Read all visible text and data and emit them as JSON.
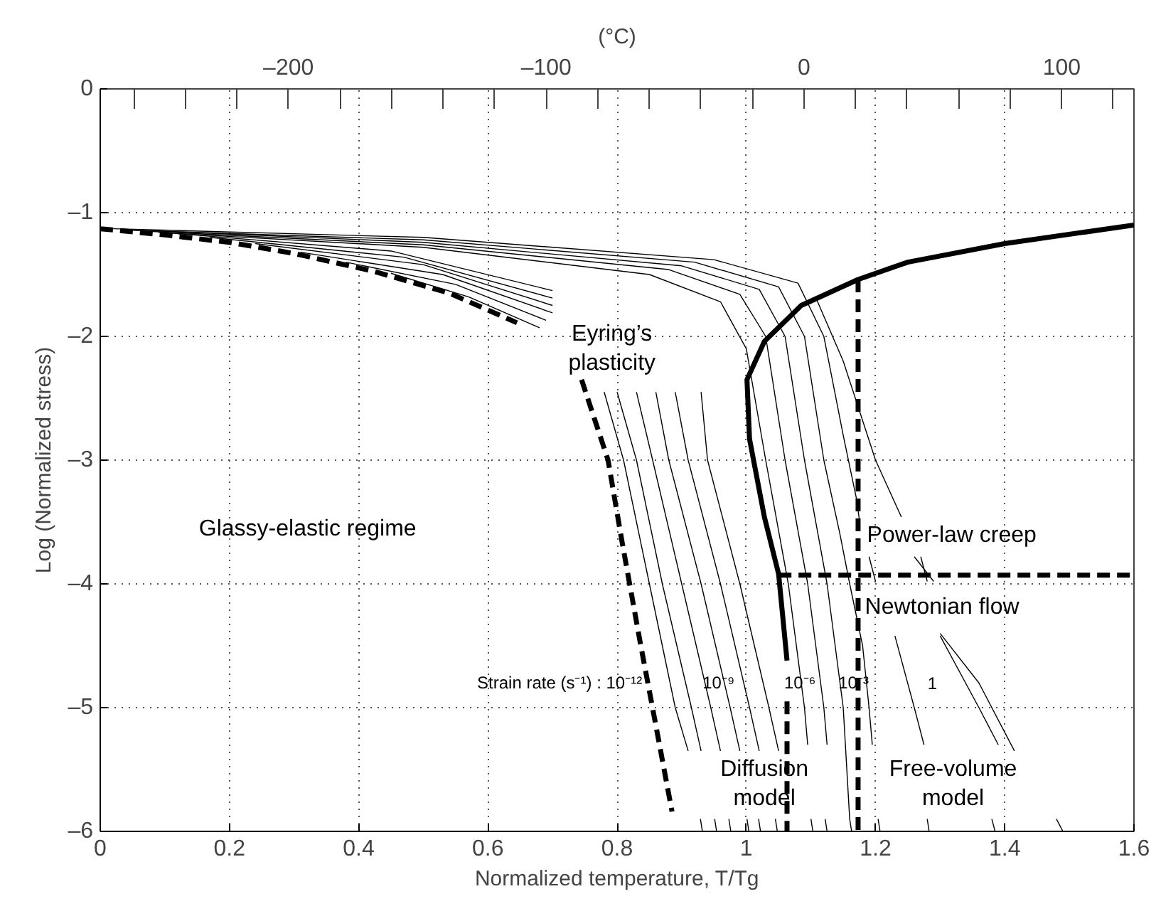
{
  "chart_data": {
    "type": "line",
    "xlabel": "Normalized temperature, T/Tg",
    "ylabel": "Log (Normalized stress)",
    "xlim": [
      0,
      1.6
    ],
    "xticks": [
      0,
      0.2,
      0.4,
      0.6,
      0.8,
      1,
      1.2,
      1.4,
      1.6
    ],
    "ylim": [
      -6,
      0
    ],
    "yticks": [
      {
        "value": -6,
        "label": "–6"
      },
      {
        "value": -5,
        "label": "–5"
      },
      {
        "value": -4,
        "label": "–4"
      },
      {
        "value": -3,
        "label": "–3"
      },
      {
        "value": -2,
        "label": "–2"
      },
      {
        "value": -1,
        "label": "–1"
      },
      0
    ],
    "x2lim": [
      -273,
      128
    ],
    "x2label": "(°C)",
    "x2ticks": [
      {
        "value": -260,
        "label": null
      },
      {
        "value": -240,
        "label": null
      },
      {
        "value": -220,
        "label": null
      },
      {
        "value": -200,
        "label": "–200"
      },
      {
        "value": -180,
        "label": null
      },
      {
        "value": -160,
        "label": null
      },
      {
        "value": -140,
        "label": null
      },
      {
        "value": -120,
        "label": null
      },
      {
        "value": -100,
        "label": "–100"
      },
      {
        "value": -80,
        "label": null
      },
      {
        "value": -60,
        "label": null
      },
      {
        "value": -40,
        "label": null
      },
      {
        "value": -20,
        "label": null
      },
      {
        "value": 0,
        "label": "0"
      },
      {
        "value": 20,
        "label": null
      },
      {
        "value": 40,
        "label": null
      },
      {
        "value": 60,
        "label": null
      },
      {
        "value": 80,
        "label": null
      },
      {
        "value": 100,
        "label": "100"
      },
      {
        "value": 120,
        "label": null
      }
    ],
    "grid": true,
    "marker": "none",
    "series": [
      {
        "color": "#000000",
        "line_style": "solid",
        "x": [
          1.6,
          1.4,
          1.25,
          1.173,
          1.085,
          1.028,
          1.001,
          1.005,
          1.028,
          1.05,
          1.063
        ],
        "values": [
          -1.1,
          -1.25,
          -1.4,
          -1.54,
          -1.75,
          -2.04,
          -2.35,
          -2.83,
          -3.46,
          -3.92,
          -4.62
        ]
      },
      {
        "color": "#000000",
        "line_style": "dashed",
        "x": [
          0,
          0.1,
          0.2,
          0.3,
          0.42,
          0.54,
          0.645
        ],
        "values": [
          -1.13,
          -1.18,
          -1.24,
          -1.33,
          -1.47,
          -1.65,
          -1.89
        ]
      },
      {
        "color": "#000000",
        "line_style": "dashed",
        "x": [
          0.745,
          0.786,
          0.808,
          0.836,
          0.862,
          0.885
        ],
        "values": [
          -2.35,
          -3.0,
          -3.67,
          -4.48,
          -5.2,
          -5.84
        ]
      },
      {
        "color": "#000000",
        "line_style": "dashed",
        "x": [
          1.063,
          1.063
        ],
        "values": [
          -4.95,
          -6
        ]
      },
      {
        "color": "#000000",
        "line_style": "dashed",
        "x": [
          1.173,
          1.173
        ],
        "values": [
          -1.54,
          -6
        ]
      },
      {
        "color": "#000000",
        "line_style": "dashed",
        "x": [
          1.05,
          1.6
        ],
        "values": [
          -3.93,
          -3.93
        ]
      },
      {
        "color": "#000000",
        "x": [
          0.45,
          0.57,
          0.68,
          null,
          0.78,
          0.81,
          0.85,
          0.89,
          0.91,
          null,
          0.929,
          0.932
        ],
        "values": [
          -1.49,
          -1.68,
          -1.93,
          null,
          -2.45,
          -3,
          -4,
          -5,
          -5.35,
          null,
          -5.9,
          -6
        ]
      },
      {
        "color": "#000000",
        "x": [
          0.38,
          0.55,
          0.69,
          null,
          0.8,
          0.83,
          0.87,
          0.915,
          0.93,
          null,
          0.951,
          0.954
        ],
        "values": [
          -1.4,
          -1.58,
          -1.87,
          null,
          -2.45,
          -3,
          -4,
          -5,
          -5.35,
          null,
          -5.9,
          -6
        ]
      },
      {
        "color": "#000000",
        "x": [
          0.31,
          0.53,
          0.7,
          null,
          0.83,
          0.855,
          0.9,
          0.945,
          0.96,
          null,
          0.973,
          0.976
        ],
        "values": [
          -1.32,
          -1.5,
          -1.81,
          null,
          -2.45,
          -3,
          -4,
          -5,
          -5.35,
          null,
          -5.9,
          -6
        ]
      },
      {
        "color": "#000000",
        "x": [
          0.24,
          0.5,
          0.7,
          null,
          0.86,
          0.88,
          0.93,
          0.975,
          0.99,
          null,
          1.001,
          1.004
        ],
        "values": [
          -1.25,
          -1.42,
          -1.75,
          null,
          -2.45,
          -3,
          -4,
          -5,
          -5.35,
          null,
          -5.9,
          -6
        ]
      },
      {
        "color": "#000000",
        "x": [
          0.17,
          0.47,
          0.7,
          null,
          0.89,
          0.91,
          0.96,
          1.005,
          1.02,
          null,
          1.019,
          1.022
        ],
        "values": [
          -1.2,
          -1.36,
          -1.69,
          null,
          -2.45,
          -3,
          -4,
          -5,
          -5.35,
          null,
          -5.9,
          -6
        ]
      },
      {
        "color": "#000000",
        "x": [
          0.12,
          0.45,
          0.7,
          null,
          0.93,
          0.94,
          0.99,
          1.035,
          1.05,
          null,
          1.045,
          1.048
        ],
        "values": [
          -1.17,
          -1.31,
          -1.63,
          null,
          -2.45,
          -3,
          -4,
          -5,
          -5.35,
          null,
          -5.9,
          -6
        ]
      },
      {
        "color": "#000000",
        "x": [
          0.09,
          0.5,
          0.85,
          0.96,
          1.0,
          1.03,
          1.065,
          1.09,
          1.095,
          null,
          1.1,
          1.103
        ],
        "values": [
          -1.16,
          -1.28,
          -1.5,
          -1.72,
          -2.1,
          -3,
          -4,
          -5,
          -5.3,
          null,
          -5.9,
          -6
        ]
      },
      {
        "color": "#000000",
        "x": [
          0.07,
          0.5,
          0.88,
          0.99,
          1.03,
          1.06,
          1.095,
          1.12,
          1.125,
          null,
          1.122,
          1.125
        ],
        "values": [
          -1.15,
          -1.26,
          -1.46,
          -1.66,
          -2.0,
          -3,
          -4,
          -5,
          -5.3,
          null,
          -5.9,
          -6
        ]
      },
      {
        "color": "#000000",
        "x": [
          0.05,
          0.5,
          0.9,
          1.02,
          1.06,
          1.09,
          1.125,
          1.15,
          1.16,
          1.163
        ],
        "values": [
          -1.14,
          -1.24,
          -1.43,
          -1.62,
          -2.0,
          -3,
          -4,
          -5,
          -5.9,
          -6
        ]
      },
      {
        "color": "#000000",
        "x": [
          0.035,
          0.5,
          0.92,
          1.05,
          1.09,
          1.12,
          1.145,
          1.16,
          1.18,
          1.19,
          1.195,
          null,
          1.204,
          1.207
        ],
        "values": [
          -1.14,
          -1.22,
          -1.4,
          -1.6,
          -2.0,
          -3,
          -3.6,
          -4,
          -4.5,
          -5,
          -5.3,
          null,
          -5.9,
          -6
        ]
      },
      {
        "color": "#000000",
        "x": [
          0.02,
          0.5,
          0.95,
          1.08,
          1.12,
          1.15,
          1.17,
          1.175,
          null,
          1.19,
          1.2,
          null,
          1.23,
          1.26,
          1.275,
          null,
          1.28,
          1.283
        ],
        "values": [
          -1.13,
          -1.2,
          -1.38,
          -1.57,
          -2.0,
          -2.8,
          -3.3,
          -3.48,
          null,
          -3.78,
          -3.98,
          null,
          -4.42,
          -5,
          -5.3,
          null,
          -5.9,
          -6
        ]
      },
      {
        "color": "#000000",
        "x": [
          1.107,
          1.15,
          1.2,
          1.24,
          null,
          1.27,
          1.28,
          null,
          1.3,
          1.36,
          1.39,
          null,
          1.38,
          1.385
        ],
        "values": [
          -1.68,
          -2.2,
          -3.0,
          -3.46,
          null,
          -3.78,
          -3.98,
          null,
          -4.42,
          -5,
          -5.3,
          null,
          -5.9,
          -6
        ]
      },
      {
        "color": "#000000",
        "x": [
          1.26,
          1.29,
          null,
          1.3,
          1.36,
          1.415,
          null,
          1.48,
          1.49
        ],
        "values": [
          -3.78,
          -3.98,
          null,
          -4.4,
          -4.8,
          -5.35,
          null,
          -5.9,
          -6
        ]
      }
    ],
    "annotations": [
      "Eyring’s\nplasticity",
      "Glassy-elastic regime",
      "Power-law creep",
      "Newtonian flow",
      "Strain rate (s⁻¹) : 10⁻¹²",
      "10⁻⁹",
      "10⁻⁶",
      "10⁻³",
      "1",
      "Diffusion\nmodel",
      "Free-volume\nmodel"
    ]
  }
}
